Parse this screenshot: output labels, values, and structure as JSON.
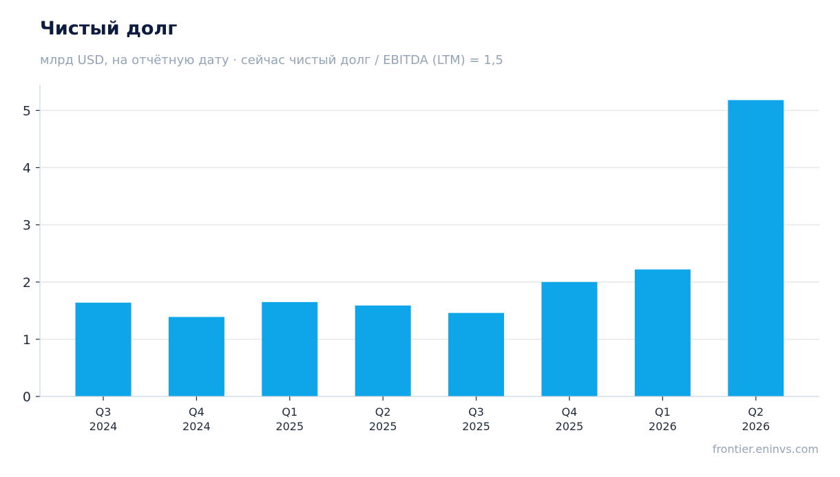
{
  "title": "Чистый долг",
  "subtitle": "млрд USD, на отчётную дату · сейчас чистый долг / EBITDA (LTM) = 1,5",
  "footer": "frontier.eninvs.com",
  "colors": {
    "bar": "#0ea5e9",
    "grid": "#e5e7eb",
    "axis": "#cbd5e1"
  },
  "chart_data": {
    "type": "bar",
    "title": "Чистый долг",
    "subtitle": "млрд USD, на отчётную дату · сейчас чистый долг / EBITDA (LTM) = 1,5",
    "categories": [
      [
        "Q3",
        "2024"
      ],
      [
        "Q4",
        "2024"
      ],
      [
        "Q1",
        "2025"
      ],
      [
        "Q2",
        "2025"
      ],
      [
        "Q3",
        "2025"
      ],
      [
        "Q4",
        "2025"
      ],
      [
        "Q1",
        "2026"
      ],
      [
        "Q2",
        "2026"
      ]
    ],
    "values": [
      1.64,
      1.39,
      1.65,
      1.59,
      1.46,
      2.0,
      2.22,
      5.18
    ],
    "ylim": [
      0,
      5.45
    ],
    "yticks": [
      0,
      1,
      2,
      3,
      4,
      5
    ],
    "grid": true
  }
}
